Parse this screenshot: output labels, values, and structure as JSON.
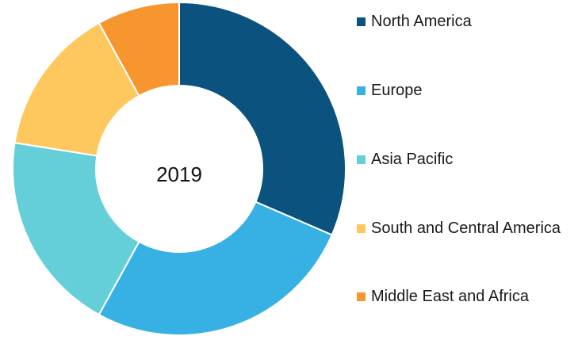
{
  "chart_data": {
    "type": "pie",
    "donut": true,
    "center_label": "2019",
    "categories": [
      "North America",
      "Europe",
      "Asia Pacific",
      "South and Central America",
      "Middle East and Africa"
    ],
    "values": [
      31.5,
      26.5,
      19.5,
      14.5,
      8.0
    ],
    "colors": [
      "#0b527e",
      "#37b0e3",
      "#65cfd9",
      "#ffc85e",
      "#f7952f"
    ],
    "legend_position": "right"
  }
}
